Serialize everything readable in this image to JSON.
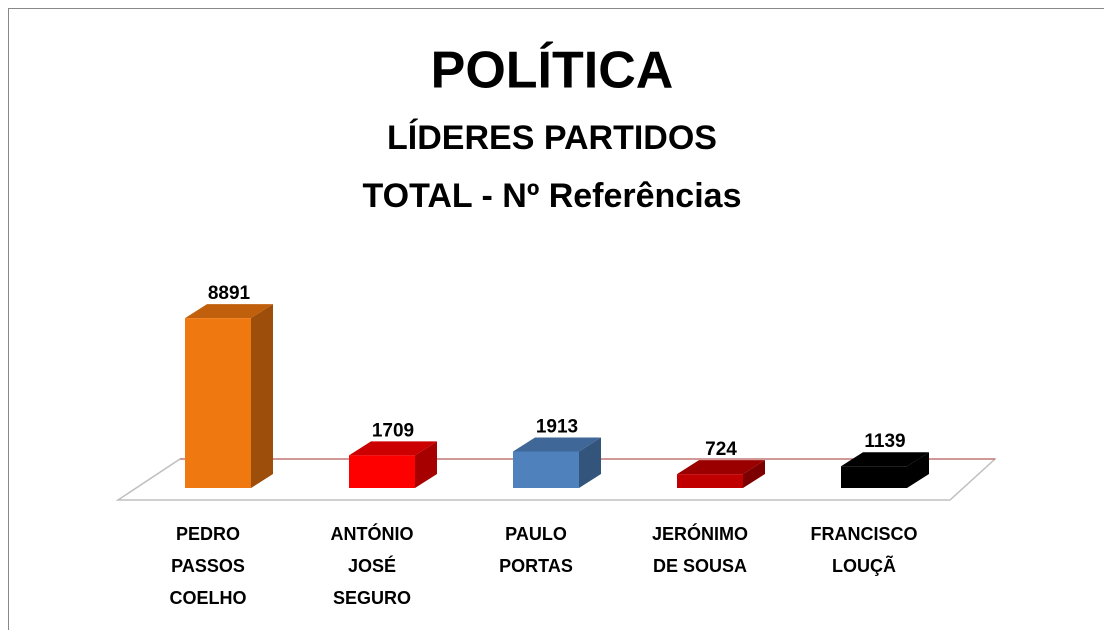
{
  "chart_data": {
    "type": "bar3d",
    "title": "POLÍTICA",
    "subtitle": [
      "LÍDERES PARTIDOS",
      "TOTAL - Nº Referências"
    ],
    "categories": [
      "PEDRO PASSOS COELHO",
      "ANTÓNIO JOSÉ SEGURO",
      "PAULO PORTAS",
      "JERÓNIMO DE SOUSA",
      "FRANCISCO LOUÇÃ"
    ],
    "values": [
      8891,
      1709,
      1913,
      724,
      1139
    ],
    "colors": [
      "#f07810",
      "#ff0000",
      "#4f81bd",
      "#c00000",
      "#000000"
    ],
    "ylim": [
      0,
      9000
    ]
  }
}
